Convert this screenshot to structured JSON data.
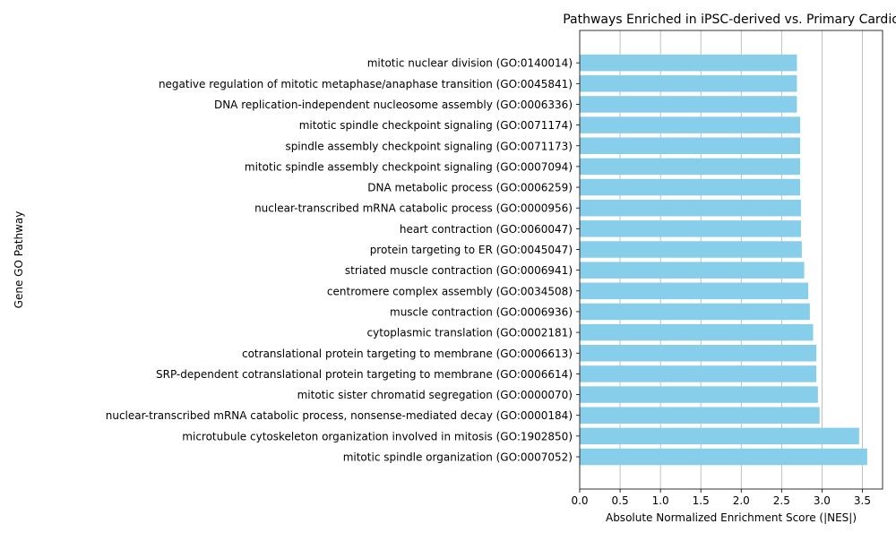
{
  "chart_data": {
    "type": "bar",
    "orientation": "horizontal",
    "title": "Pathways Enriched in iPSC-derived vs. Primary Cardio",
    "xlabel": "Absolute Normalized Enrichment Score (|NES|)",
    "ylabel": "Gene GO Pathway",
    "xlim": [
      0,
      3.75
    ],
    "xticks": [
      "0.0",
      "0.5",
      "1.0",
      "1.5",
      "2.0",
      "2.5",
      "3.0",
      "3.5"
    ],
    "grid": "x",
    "bar_color": "#87ceeb",
    "categories": [
      "mitotic spindle organization (GO:0007052)",
      "microtubule cytoskeleton organization involved in mitosis (GO:1902850)",
      "nuclear-transcribed mRNA catabolic process, nonsense-mediated decay (GO:0000184)",
      "mitotic sister chromatid segregation (GO:0000070)",
      "SRP-dependent cotranslational protein targeting to membrane (GO:0006614)",
      "cotranslational protein targeting to membrane (GO:0006613)",
      "cytoplasmic translation (GO:0002181)",
      "muscle contraction (GO:0006936)",
      "centromere complex assembly (GO:0034508)",
      "striated muscle contraction (GO:0006941)",
      "protein targeting to ER (GO:0045047)",
      "heart contraction (GO:0060047)",
      "nuclear-transcribed mRNA catabolic process (GO:0000956)",
      "DNA metabolic process (GO:0006259)",
      "mitotic spindle assembly checkpoint signaling (GO:0007094)",
      "spindle assembly checkpoint signaling (GO:0071173)",
      "mitotic spindle checkpoint signaling (GO:0071174)",
      "DNA replication-independent nucleosome assembly (GO:0006336)",
      "negative regulation of mitotic metaphase/anaphase transition (GO:0045841)",
      "mitotic nuclear division (GO:0140014)"
    ],
    "values": [
      3.56,
      3.46,
      2.97,
      2.95,
      2.93,
      2.93,
      2.89,
      2.85,
      2.83,
      2.78,
      2.75,
      2.74,
      2.74,
      2.73,
      2.73,
      2.73,
      2.73,
      2.69,
      2.69,
      2.69
    ]
  }
}
